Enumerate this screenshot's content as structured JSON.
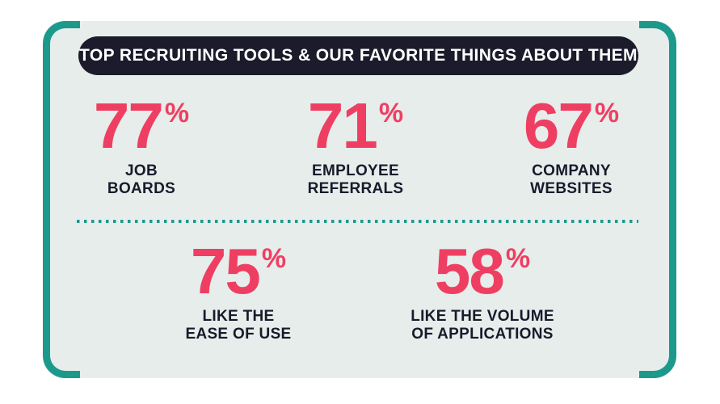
{
  "title": "TOP RECRUITING TOOLS & OUR FAVORITE THINGS ABOUT THEM",
  "stats_top": [
    {
      "number": "77",
      "suffix": "%",
      "label": "JOB\nBOARDS"
    },
    {
      "number": "71",
      "suffix": "%",
      "label": "EMPLOYEE\nREFERRALS"
    },
    {
      "number": "67",
      "suffix": "%",
      "label": "COMPANY\nWEBSITES"
    }
  ],
  "stats_bottom": [
    {
      "number": "75",
      "suffix": "%",
      "label": "LIKE THE\nEASE OF USE"
    },
    {
      "number": "58",
      "suffix": "%",
      "label": "LIKE THE VOLUME\nOF APPLICATIONS"
    }
  ],
  "colors": {
    "accent_pink": "#ee3f63",
    "frame_teal": "#1b9a8b",
    "banner_navy": "#1b1b2b",
    "panel_background": "#e7edeb",
    "page_background": "#ffffff",
    "banner_text": "#ffffff",
    "label_navy": "#191a2b"
  },
  "chart_data": {
    "type": "table",
    "title": "TOP RECRUITING TOOLS & OUR FAVORITE THINGS ABOUT THEM",
    "categories": [
      "JOB BOARDS",
      "EMPLOYEE REFERRALS",
      "COMPANY WEBSITES",
      "LIKE THE EASE OF USE",
      "LIKE THE VOLUME OF APPLICATIONS"
    ],
    "values": [
      77,
      71,
      67,
      75,
      58
    ],
    "unit": "%",
    "groups": {
      "tools_usage": {
        "categories": [
          "JOB BOARDS",
          "EMPLOYEE REFERRALS",
          "COMPANY WEBSITES"
        ],
        "values": [
          77,
          71,
          67
        ]
      },
      "favorite_things": {
        "categories": [
          "LIKE THE EASE OF USE",
          "LIKE THE VOLUME OF APPLICATIONS"
        ],
        "values": [
          75,
          58
        ]
      }
    }
  }
}
